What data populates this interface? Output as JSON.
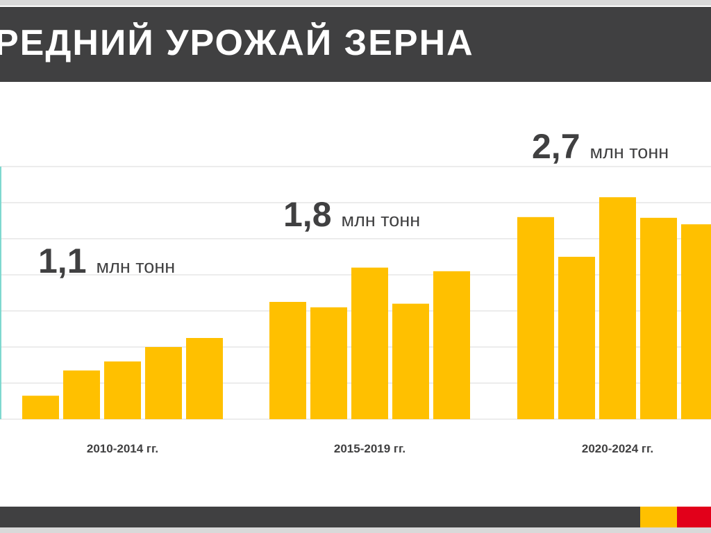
{
  "title": "РЕДНИЙ УРОЖАЙ ЗЕРНА",
  "colors": {
    "bar": "#FFC000",
    "title_bar": "#404041",
    "accent_yellow": "#FFC000",
    "accent_red": "#E2001A",
    "text_dark": "#404041",
    "grid": "#D9D9D9",
    "axis": "#7FD8CF"
  },
  "chart_data": {
    "type": "bar",
    "grid": true,
    "ylim": [
      0,
      7
    ],
    "groups": [
      {
        "label": "2010-2014 гг.",
        "summary_value": "1,1",
        "summary_unit": "млн тонн",
        "values": [
          0.65,
          1.35,
          1.6,
          2.0,
          2.25
        ]
      },
      {
        "label": "2015-2019 гг.",
        "summary_value": "1,8",
        "summary_unit": "млн тонн",
        "values": [
          3.25,
          3.1,
          4.2,
          3.2,
          4.1
        ]
      },
      {
        "label": "2020-2024 гг.",
        "summary_value": "2,7",
        "summary_unit": "млн тонн",
        "values": [
          5.6,
          4.5,
          6.15,
          5.58,
          5.4
        ]
      }
    ]
  }
}
